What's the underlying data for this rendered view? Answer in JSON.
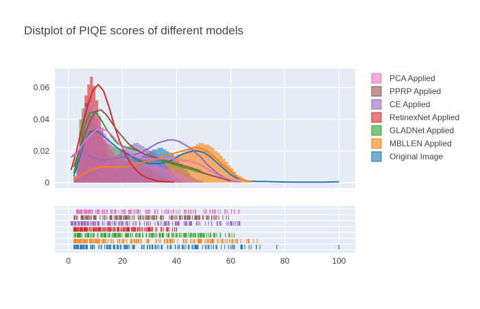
{
  "chart_data": {
    "type": "distplot",
    "title": "Distplot of PIQE scores of different models",
    "xlabel": "",
    "ylabel": "",
    "xlim": [
      -5,
      106
    ],
    "ylim": [
      0,
      0.072
    ],
    "x_ticks": [
      0,
      20,
      40,
      60,
      80,
      100
    ],
    "y_ticks": [
      0,
      0.02,
      0.04,
      0.06
    ],
    "y_tick_labels": [
      "0",
      "0.02",
      "0.04",
      "0.06"
    ],
    "grid": true,
    "legend_position": "right",
    "series": [
      {
        "name": "PCA Applied",
        "color": "#e377c2",
        "hist": {
          "start": 2,
          "width": 1,
          "values": [
            0.003,
            0.012,
            0.028,
            0.046,
            0.048,
            0.052,
            0.05,
            0.047,
            0.043,
            0.04,
            0.035,
            0.031,
            0.028,
            0.025,
            0.022,
            0.019,
            0.017,
            0.016,
            0.015,
            0.015,
            0.014,
            0.014,
            0.013,
            0.013,
            0.013,
            0.012,
            0.012,
            0.012,
            0.011,
            0.011,
            0.011,
            0.01,
            0.01,
            0.009,
            0.009,
            0.008,
            0.008,
            0.007,
            0.006,
            0.006,
            0.005,
            0.004,
            0.003,
            0.002,
            0.001,
            0.001
          ]
        },
        "kde": {
          "x": [
            2,
            4,
            6,
            8,
            10,
            12,
            14,
            16,
            18,
            20,
            22,
            24,
            26,
            28,
            30,
            32,
            34,
            36,
            38,
            40,
            42,
            44,
            46,
            48,
            50,
            52,
            54,
            56,
            58,
            60,
            62,
            64
          ],
          "y": [
            0.016,
            0.021,
            0.026,
            0.03,
            0.033,
            0.034,
            0.033,
            0.03,
            0.026,
            0.022,
            0.019,
            0.017,
            0.016,
            0.015,
            0.015,
            0.015,
            0.015,
            0.015,
            0.015,
            0.015,
            0.014,
            0.014,
            0.013,
            0.012,
            0.01,
            0.008,
            0.006,
            0.004,
            0.003,
            0.002,
            0.001,
            0.0005
          ]
        },
        "rug_range": [
          3,
          64
        ]
      },
      {
        "name": "PPRP Applied",
        "color": "#8c564b",
        "hist": {
          "start": 2,
          "width": 1,
          "values": [
            0.004,
            0.015,
            0.032,
            0.044,
            0.05,
            0.052,
            0.049,
            0.045,
            0.04,
            0.035,
            0.031,
            0.027,
            0.024,
            0.021,
            0.019,
            0.017,
            0.016,
            0.015,
            0.014,
            0.014,
            0.013,
            0.012,
            0.012,
            0.011,
            0.011,
            0.01,
            0.009,
            0.009,
            0.008,
            0.007,
            0.006,
            0.005,
            0.004,
            0.003,
            0.002,
            0.001
          ]
        },
        "kde": {
          "x": [
            2,
            4,
            6,
            8,
            10,
            12,
            14,
            16,
            18,
            20,
            22,
            24,
            26,
            28,
            30,
            32,
            34,
            36,
            38,
            40,
            42,
            44,
            46,
            48,
            50,
            52,
            54,
            56,
            58,
            60
          ],
          "y": [
            0.01,
            0.02,
            0.03,
            0.039,
            0.045,
            0.046,
            0.043,
            0.038,
            0.033,
            0.029,
            0.025,
            0.022,
            0.02,
            0.018,
            0.017,
            0.016,
            0.015,
            0.014,
            0.013,
            0.012,
            0.011,
            0.01,
            0.009,
            0.008,
            0.006,
            0.005,
            0.004,
            0.003,
            0.002,
            0.001
          ]
        },
        "rug_range": [
          2,
          60
        ]
      },
      {
        "name": "CE Applied",
        "color": "#9467bd",
        "hist": {
          "start": 2,
          "width": 1,
          "values": [
            0.003,
            0.01,
            0.02,
            0.027,
            0.031,
            0.033,
            0.03,
            0.027,
            0.022,
            0.019,
            0.017,
            0.016,
            0.016,
            0.015,
            0.016,
            0.017,
            0.018,
            0.02,
            0.021,
            0.022,
            0.023,
            0.024,
            0.025,
            0.025,
            0.024,
            0.023,
            0.022,
            0.021,
            0.02,
            0.019,
            0.018,
            0.016,
            0.014,
            0.012,
            0.01,
            0.008,
            0.006,
            0.004,
            0.003,
            0.002
          ]
        },
        "kde": {
          "x": [
            1,
            3,
            5,
            7,
            9,
            11,
            13,
            15,
            17,
            19,
            21,
            23,
            25,
            27,
            29,
            31,
            33,
            35,
            37,
            39,
            41,
            43,
            45,
            47,
            49,
            51,
            53,
            55,
            57,
            59,
            61,
            63
          ],
          "y": [
            0.016,
            0.019,
            0.02,
            0.018,
            0.016,
            0.015,
            0.014,
            0.015,
            0.015,
            0.016,
            0.016,
            0.017,
            0.018,
            0.019,
            0.021,
            0.023,
            0.025,
            0.026,
            0.027,
            0.027,
            0.026,
            0.024,
            0.022,
            0.019,
            0.016,
            0.012,
            0.009,
            0.006,
            0.004,
            0.002,
            0.001,
            0.0005
          ]
        },
        "rug_range": [
          1,
          64
        ]
      },
      {
        "name": "RetinexNet Applied",
        "color": "#d62728",
        "hist": {
          "start": 2,
          "width": 1,
          "values": [
            0.002,
            0.01,
            0.025,
            0.04,
            0.055,
            0.062,
            0.067,
            0.061,
            0.052,
            0.042,
            0.033,
            0.025,
            0.018,
            0.013,
            0.009,
            0.006,
            0.004,
            0.003,
            0.002,
            0.001
          ]
        },
        "kde": {
          "x": [
            1,
            3,
            5,
            7,
            9,
            11,
            13,
            15,
            17,
            19,
            21,
            23,
            25,
            27,
            29,
            31,
            33,
            35,
            37,
            39
          ],
          "y": [
            0.008,
            0.02,
            0.035,
            0.048,
            0.058,
            0.062,
            0.058,
            0.048,
            0.036,
            0.026,
            0.018,
            0.012,
            0.008,
            0.005,
            0.003,
            0.002,
            0.001,
            0.0008,
            0.0005,
            0.0003
          ]
        },
        "rug_range": [
          2,
          40
        ]
      },
      {
        "name": "GLADNet Applied",
        "color": "#2ca02c",
        "hist": {
          "start": 2,
          "width": 1,
          "values": [
            0.003,
            0.02,
            0.04,
            0.047,
            0.05,
            0.046,
            0.042,
            0.038,
            0.034,
            0.031,
            0.028,
            0.026,
            0.025,
            0.024,
            0.023,
            0.022,
            0.021,
            0.021,
            0.02,
            0.019,
            0.018,
            0.018,
            0.017,
            0.016,
            0.015,
            0.014,
            0.013,
            0.012,
            0.011,
            0.01,
            0.009,
            0.008,
            0.007,
            0.006,
            0.005,
            0.004,
            0.003,
            0.002,
            0.002,
            0.001
          ]
        },
        "kde": {
          "x": [
            2,
            4,
            6,
            8,
            10,
            12,
            14,
            16,
            18,
            20,
            22,
            24,
            26,
            28,
            30,
            32,
            34,
            36,
            38,
            40,
            42,
            44,
            46,
            48,
            50,
            52,
            54,
            56,
            58,
            60
          ],
          "y": [
            0.006,
            0.02,
            0.036,
            0.044,
            0.045,
            0.04,
            0.034,
            0.029,
            0.025,
            0.023,
            0.022,
            0.021,
            0.02,
            0.018,
            0.017,
            0.015,
            0.014,
            0.013,
            0.012,
            0.011,
            0.01,
            0.009,
            0.008,
            0.007,
            0.006,
            0.005,
            0.004,
            0.003,
            0.002,
            0.001
          ]
        },
        "rug_range": [
          2,
          62
        ]
      },
      {
        "name": "MBLLEN Applied",
        "color": "#ff7f0e",
        "hist": {
          "start": 36,
          "width": 1,
          "values": [
            0.013,
            0.014,
            0.016,
            0.017,
            0.018,
            0.018,
            0.019,
            0.02,
            0.021,
            0.022,
            0.023,
            0.024,
            0.025,
            0.025,
            0.024,
            0.024,
            0.023,
            0.022,
            0.02,
            0.019,
            0.017,
            0.015,
            0.013,
            0.011,
            0.009,
            0.007,
            0.005,
            0.004,
            0.003,
            0.002,
            0.001
          ]
        },
        "kde": {
          "x": [
            2,
            4,
            6,
            8,
            10,
            12,
            14,
            16,
            18,
            20,
            22,
            24,
            26,
            28,
            30,
            32,
            34,
            36,
            38,
            40,
            42,
            44,
            46,
            48,
            50,
            52,
            54,
            56,
            58,
            60,
            62,
            64,
            66,
            68
          ],
          "y": [
            0.002,
            0.004,
            0.006,
            0.008,
            0.009,
            0.01,
            0.01,
            0.01,
            0.01,
            0.01,
            0.01,
            0.011,
            0.012,
            0.013,
            0.014,
            0.015,
            0.016,
            0.017,
            0.018,
            0.019,
            0.02,
            0.021,
            0.022,
            0.022,
            0.021,
            0.019,
            0.016,
            0.013,
            0.01,
            0.007,
            0.004,
            0.002,
            0.001,
            0.0005
          ]
        },
        "rug_range": [
          2,
          70
        ]
      },
      {
        "name": "Original Image",
        "color": "#1f77b4",
        "hist": {
          "start": 2,
          "width": 1,
          "values": [
            0.003,
            0.012,
            0.024,
            0.03,
            0.032,
            0.03,
            0.027,
            0.024,
            0.021,
            0.019,
            0.017,
            0.016,
            0.015,
            0.014,
            0.014,
            0.013,
            0.013,
            0.013,
            0.013,
            0.013,
            0.014,
            0.014,
            0.015,
            0.015,
            0.016,
            0.017,
            0.018,
            0.019,
            0.02,
            0.021,
            0.021,
            0.022,
            0.022,
            0.021,
            0.02,
            0.019,
            0.018,
            0.016,
            0.014,
            0.012,
            0.01,
            0.008,
            0.006,
            0.004,
            0.003,
            0.002,
            0.001,
            0.001
          ]
        },
        "kde": {
          "x": [
            2,
            4,
            6,
            8,
            10,
            12,
            14,
            16,
            18,
            20,
            22,
            24,
            26,
            28,
            30,
            32,
            34,
            36,
            38,
            40,
            42,
            44,
            46,
            48,
            50,
            52,
            54,
            56,
            58,
            60,
            62,
            64,
            66,
            70,
            75,
            80,
            85,
            90,
            95,
            100
          ],
          "y": [
            0.004,
            0.015,
            0.026,
            0.032,
            0.033,
            0.031,
            0.028,
            0.025,
            0.022,
            0.02,
            0.018,
            0.016,
            0.014,
            0.013,
            0.012,
            0.012,
            0.012,
            0.013,
            0.014,
            0.016,
            0.018,
            0.019,
            0.02,
            0.02,
            0.019,
            0.017,
            0.014,
            0.011,
            0.008,
            0.005,
            0.003,
            0.002,
            0.001,
            0.0008,
            0.0006,
            0.0004,
            0.0003,
            0.0003,
            0.0003,
            0.0005
          ]
        },
        "rug_range": [
          2,
          72
        ],
        "rug_outliers": [
          77,
          100
        ]
      }
    ]
  }
}
